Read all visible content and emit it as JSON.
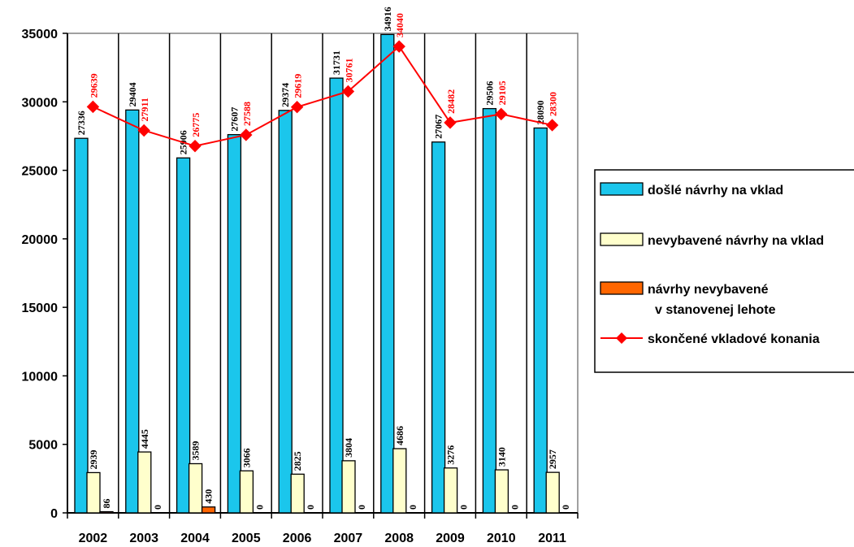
{
  "chart_data": {
    "type": "bar",
    "title": "",
    "xlabel": "",
    "ylabel": "",
    "ylim": [
      0,
      35000
    ],
    "yticks": [
      0,
      5000,
      10000,
      15000,
      20000,
      25000,
      30000,
      35000
    ],
    "categories": [
      "2002",
      "2003",
      "2004",
      "2005",
      "2006",
      "2007",
      "2008",
      "2009",
      "2010",
      "2011"
    ],
    "grid": "vertical category separators",
    "legend_position": "right",
    "series": [
      {
        "name": "došlé návrhy na vklad",
        "kind": "bar",
        "color": "#1BC6EC",
        "values": [
          27336,
          29404,
          25906,
          27607,
          29374,
          31731,
          34916,
          27067,
          29506,
          28090
        ],
        "labels": [
          "27336",
          "29404",
          "25906",
          "27607",
          "29374",
          "31731",
          "34916",
          "27067",
          "29506",
          "28090"
        ]
      },
      {
        "name": "nevybavené návrhy na vklad",
        "kind": "bar",
        "color": "#FFFFCC",
        "values": [
          2939,
          4445,
          3589,
          3066,
          2825,
          3804,
          4686,
          3276,
          3140,
          2957
        ],
        "labels": [
          "2939",
          "4445",
          "3589",
          "3066",
          "2825",
          "3804",
          "4686",
          "3276",
          "3140",
          "2957"
        ]
      },
      {
        "name_lines": [
          "návrhy nevybavené",
          "v stanovenej lehote"
        ],
        "kind": "bar",
        "color": "#FF6600",
        "values": [
          86,
          0,
          430,
          0,
          0,
          0,
          0,
          0,
          0,
          0
        ],
        "labels": [
          "86",
          "0",
          "430",
          "0",
          "0",
          "0",
          "0",
          "0",
          "0",
          "0"
        ]
      },
      {
        "name": "skončené vkladové konania",
        "kind": "line",
        "color": "#FF0000",
        "values": [
          29639,
          27911,
          26775,
          27588,
          29619,
          30761,
          34040,
          28482,
          29105,
          28300
        ],
        "labels": [
          "29639",
          "27911",
          "26775",
          "27588",
          "29619",
          "30761",
          "34040",
          "28482",
          "29105",
          "28300"
        ]
      }
    ]
  }
}
